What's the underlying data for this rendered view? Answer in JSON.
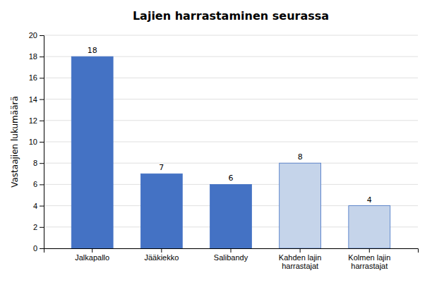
{
  "chart_data": {
    "type": "bar",
    "title": "Lajien harrastaminen seurassa",
    "ylabel": "Vastaajien lukumäärä",
    "categories": [
      "Jalkapallo",
      "Jääkiekko",
      "Salibandy",
      "Kahden lajin\nharrastajat",
      "Kolmen lajin\nharrastajat"
    ],
    "values": [
      18,
      7,
      6,
      8,
      4
    ],
    "colors": [
      "#4472C4",
      "#4472C4",
      "#4472C4",
      "#C5D4EA",
      "#C5D4EA"
    ],
    "ylim": [
      0,
      20
    ],
    "yticks": [
      0,
      2,
      4,
      6,
      8,
      10,
      12,
      14,
      16,
      18,
      20
    ],
    "grid": true,
    "data_labels": true
  }
}
